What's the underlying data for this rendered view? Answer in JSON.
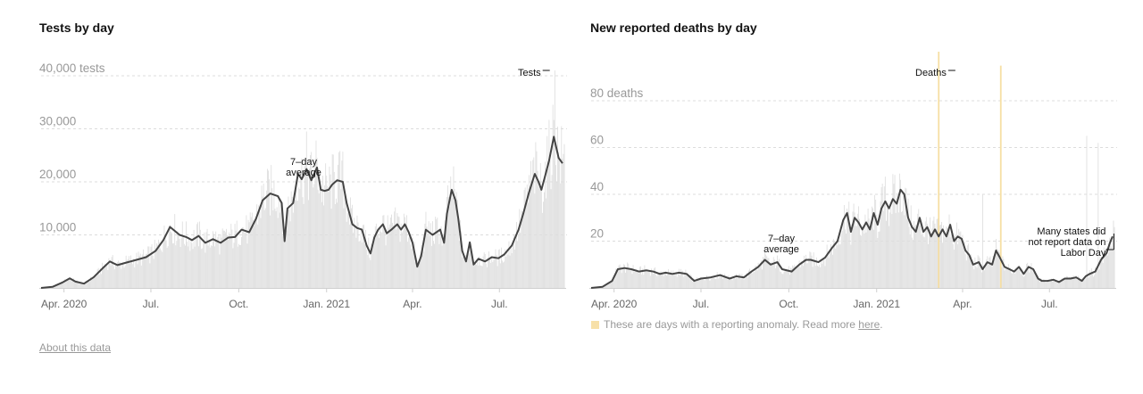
{
  "about_link": "About this data",
  "anomaly_note": {
    "text": "These are days with a reporting anomaly. Read more ",
    "link": "here",
    "suffix": ".",
    "swatch_color": "#f7e0a8"
  },
  "colors": {
    "bar": "#dedede",
    "line": "#444444",
    "anomaly": "#f6dfa3",
    "grid": "#dcdcdc"
  },
  "chart_data": [
    {
      "id": "tests",
      "type": "bar",
      "title": "Tests by day",
      "ylim": [
        0,
        40000
      ],
      "yticks": [
        {
          "value": 10000,
          "label": "10,000"
        },
        {
          "value": 20000,
          "label": "20,000"
        },
        {
          "value": 30000,
          "label": "30,000"
        },
        {
          "value": 40000,
          "label": "40,000 tests"
        }
      ],
      "xlim": [
        0,
        548
      ],
      "xticks": [
        {
          "day": 24,
          "label": "Apr. 2020"
        },
        {
          "day": 115,
          "label": "Jul."
        },
        {
          "day": 207,
          "label": "Oct."
        },
        {
          "day": 299,
          "label": "Jan. 2021"
        },
        {
          "day": 389,
          "label": "Apr."
        },
        {
          "day": 480,
          "label": "Jul."
        }
      ],
      "legend_bars_label": "Tests",
      "legend_line_label": "7-day average",
      "avg_keypoints": [
        [
          0,
          0
        ],
        [
          12,
          200
        ],
        [
          22,
          1000
        ],
        [
          30,
          1800
        ],
        [
          36,
          1200
        ],
        [
          45,
          800
        ],
        [
          55,
          2000
        ],
        [
          65,
          3800
        ],
        [
          72,
          5000
        ],
        [
          80,
          4300
        ],
        [
          90,
          4800
        ],
        [
          100,
          5300
        ],
        [
          110,
          5800
        ],
        [
          120,
          7000
        ],
        [
          128,
          9000
        ],
        [
          135,
          11500
        ],
        [
          145,
          10000
        ],
        [
          152,
          9600
        ],
        [
          158,
          9000
        ],
        [
          165,
          9800
        ],
        [
          172,
          8500
        ],
        [
          180,
          9200
        ],
        [
          188,
          8500
        ],
        [
          196,
          9500
        ],
        [
          203,
          9600
        ],
        [
          210,
          11000
        ],
        [
          218,
          10500
        ],
        [
          225,
          13000
        ],
        [
          232,
          16500
        ],
        [
          240,
          17800
        ],
        [
          248,
          17300
        ],
        [
          252,
          16000
        ],
        [
          255,
          8800
        ],
        [
          258,
          15000
        ],
        [
          264,
          16000
        ],
        [
          269,
          21500
        ],
        [
          273,
          20500
        ],
        [
          278,
          22400
        ],
        [
          283,
          20300
        ],
        [
          289,
          22700
        ],
        [
          293,
          18500
        ],
        [
          297,
          18300
        ],
        [
          301,
          18500
        ],
        [
          305,
          19500
        ],
        [
          310,
          20300
        ],
        [
          316,
          20000
        ],
        [
          320,
          16000
        ],
        [
          326,
          12000
        ],
        [
          331,
          11300
        ],
        [
          336,
          11000
        ],
        [
          341,
          8000
        ],
        [
          345,
          6500
        ],
        [
          349,
          9500
        ],
        [
          353,
          11000
        ],
        [
          358,
          12000
        ],
        [
          362,
          10300
        ],
        [
          367,
          11000
        ],
        [
          373,
          12000
        ],
        [
          377,
          11000
        ],
        [
          381,
          12000
        ],
        [
          385,
          10500
        ],
        [
          389,
          8500
        ],
        [
          394,
          4000
        ],
        [
          398,
          6000
        ],
        [
          403,
          11000
        ],
        [
          410,
          10000
        ],
        [
          418,
          11000
        ],
        [
          422,
          8500
        ],
        [
          425,
          14000
        ],
        [
          430,
          18500
        ],
        [
          434,
          16500
        ],
        [
          437,
          13000
        ],
        [
          441,
          7000
        ],
        [
          445,
          5000
        ],
        [
          449,
          8600
        ],
        [
          453,
          4400
        ],
        [
          458,
          5500
        ],
        [
          465,
          5000
        ],
        [
          472,
          5800
        ],
        [
          479,
          5600
        ],
        [
          485,
          6300
        ],
        [
          493,
          8000
        ],
        [
          500,
          11000
        ],
        [
          505,
          14000
        ],
        [
          511,
          18000
        ],
        [
          517,
          21500
        ],
        [
          521,
          20000
        ],
        [
          524,
          18500
        ],
        [
          527,
          20500
        ],
        [
          532,
          24000
        ],
        [
          537,
          28500
        ],
        [
          542,
          24500
        ],
        [
          546,
          23500
        ]
      ],
      "peak_bar": {
        "day": 538,
        "value": 41000
      }
    },
    {
      "id": "deaths",
      "type": "bar",
      "title": "New reported deaths by day",
      "ylim": [
        0,
        80
      ],
      "yticks": [
        {
          "value": 20,
          "label": "20"
        },
        {
          "value": 40,
          "label": "40"
        },
        {
          "value": 60,
          "label": "60"
        },
        {
          "value": 80,
          "label": "80 deaths"
        }
      ],
      "xlim": [
        0,
        548
      ],
      "xticks": [
        {
          "day": 24,
          "label": "Apr. 2020"
        },
        {
          "day": 115,
          "label": "Jul."
        },
        {
          "day": 207,
          "label": "Oct."
        },
        {
          "day": 299,
          "label": "Jan. 2021"
        },
        {
          "day": 389,
          "label": "Apr."
        },
        {
          "day": 480,
          "label": "Jul."
        }
      ],
      "legend_bars_label": "Deaths",
      "legend_line_label": "7-day average",
      "avg_keypoints": [
        [
          0,
          0
        ],
        [
          12,
          0.5
        ],
        [
          22,
          3
        ],
        [
          28,
          8
        ],
        [
          35,
          8.5
        ],
        [
          42,
          8
        ],
        [
          50,
          7
        ],
        [
          58,
          7.5
        ],
        [
          65,
          7
        ],
        [
          72,
          6
        ],
        [
          78,
          6.5
        ],
        [
          85,
          6
        ],
        [
          92,
          6.5
        ],
        [
          100,
          6
        ],
        [
          108,
          3
        ],
        [
          115,
          4
        ],
        [
          125,
          4.5
        ],
        [
          135,
          5.5
        ],
        [
          145,
          4
        ],
        [
          152,
          5
        ],
        [
          160,
          4.5
        ],
        [
          168,
          7
        ],
        [
          175,
          9
        ],
        [
          182,
          12
        ],
        [
          188,
          10
        ],
        [
          195,
          11
        ],
        [
          200,
          8
        ],
        [
          210,
          7
        ],
        [
          218,
          10
        ],
        [
          225,
          12
        ],
        [
          230,
          12
        ],
        [
          238,
          11
        ],
        [
          245,
          13
        ],
        [
          252,
          17
        ],
        [
          258,
          20
        ],
        [
          264,
          29
        ],
        [
          268,
          32
        ],
        [
          272,
          24
        ],
        [
          276,
          30
        ],
        [
          280,
          28
        ],
        [
          284,
          25
        ],
        [
          288,
          28
        ],
        [
          292,
          25
        ],
        [
          296,
          32
        ],
        [
          300,
          27
        ],
        [
          304,
          34
        ],
        [
          308,
          37
        ],
        [
          312,
          34
        ],
        [
          316,
          38
        ],
        [
          320,
          36
        ],
        [
          324,
          42
        ],
        [
          328,
          40
        ],
        [
          332,
          30
        ],
        [
          336,
          26
        ],
        [
          340,
          24
        ],
        [
          344,
          30
        ],
        [
          348,
          24
        ],
        [
          352,
          26
        ],
        [
          356,
          22
        ],
        [
          360,
          25
        ],
        [
          364,
          22
        ],
        [
          368,
          25
        ],
        [
          372,
          22
        ],
        [
          376,
          27
        ],
        [
          380,
          20
        ],
        [
          384,
          22
        ],
        [
          388,
          21
        ],
        [
          392,
          16
        ],
        [
          396,
          14
        ],
        [
          400,
          10
        ],
        [
          406,
          11
        ],
        [
          410,
          8
        ],
        [
          415,
          11
        ],
        [
          420,
          10
        ],
        [
          424,
          16
        ],
        [
          428,
          13
        ],
        [
          433,
          9
        ],
        [
          438,
          8
        ],
        [
          443,
          7
        ],
        [
          448,
          9
        ],
        [
          453,
          6
        ],
        [
          458,
          9
        ],
        [
          463,
          8
        ],
        [
          468,
          4
        ],
        [
          472,
          3
        ],
        [
          478,
          3
        ],
        [
          484,
          3.5
        ],
        [
          490,
          2.5
        ],
        [
          496,
          4
        ],
        [
          502,
          4
        ],
        [
          508,
          4.5
        ],
        [
          514,
          3
        ],
        [
          518,
          5
        ],
        [
          522,
          6
        ],
        [
          528,
          7
        ],
        [
          534,
          12
        ],
        [
          540,
          15
        ],
        [
          543,
          19
        ],
        [
          546,
          22
        ]
      ],
      "spikes": [
        {
          "day": 364,
          "value": 43
        },
        {
          "day": 410,
          "value": 40
        },
        {
          "day": 519,
          "value": 65
        },
        {
          "day": 531,
          "value": 62
        }
      ],
      "anomalies": [
        {
          "day": 364,
          "value": 105
        },
        {
          "day": 429,
          "value": 95
        }
      ],
      "annotation": {
        "day": 539,
        "lines": [
          "Many states did",
          "not report data on",
          "Labor Day"
        ]
      }
    }
  ]
}
